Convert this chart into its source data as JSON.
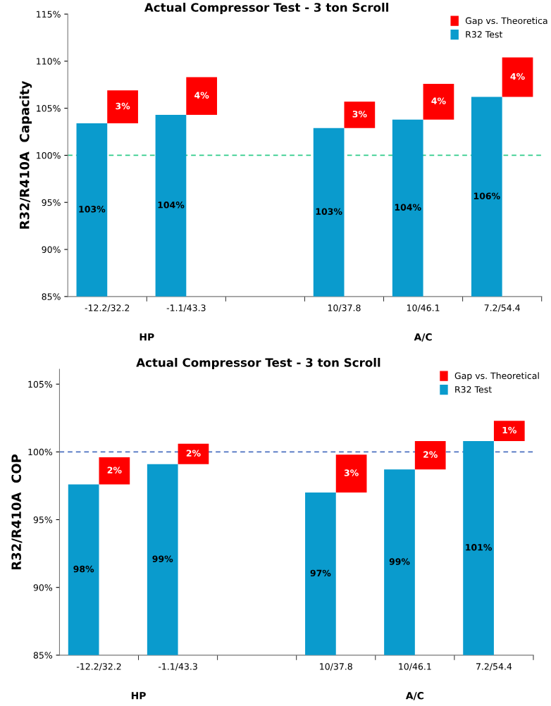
{
  "chart_data": [
    {
      "type": "bar",
      "title": "Actual Compressor Test - 3 ton Scroll",
      "ylabel": "R32/R410A  Capacity",
      "categories": [
        "-12.2/32.2",
        "-1.1/43.3",
        null,
        "10/37.8",
        "10/46.1",
        "7.2/54.4"
      ],
      "series": [
        {
          "name": "Gap vs. Theoretica",
          "color": "#ff0000",
          "base": [
            103.4,
            104.3,
            null,
            102.9,
            103.8,
            106.2
          ],
          "values": [
            3.5,
            4.0,
            null,
            2.8,
            3.8,
            4.2
          ],
          "value_labels": [
            "3%",
            "4%",
            null,
            "3%",
            "4%",
            "4%"
          ]
        },
        {
          "name": "R32 Test",
          "color": "#0a9bcd",
          "values": [
            103.4,
            104.3,
            null,
            102.9,
            103.8,
            106.2
          ],
          "value_labels": [
            "103%",
            "104%",
            null,
            "103%",
            "104%",
            "106%"
          ]
        }
      ],
      "ylim": [
        85,
        115
      ],
      "yticks": [
        {
          "value": 85,
          "label": "85%"
        },
        {
          "value": 90,
          "label": "90%"
        },
        {
          "value": 95,
          "label": "95%"
        },
        {
          "value": 100,
          "label": "100%"
        },
        {
          "value": 105,
          "label": "105%"
        },
        {
          "value": 110,
          "label": "110%"
        },
        {
          "value": 115,
          "label": "115%"
        }
      ],
      "ref_lines": [
        {
          "axis": "y",
          "value": 100,
          "color": "#2ecc8a",
          "line_style": "dashed"
        }
      ],
      "annotations": [
        "HP",
        "A/C"
      ],
      "legend": "top right",
      "grid": false
    },
    {
      "type": "bar",
      "title": "Actual Compressor Test - 3 ton Scroll",
      "ylabel": "R32/R410A  COP",
      "categories": [
        "-12.2/32.2",
        "-1.1/43.3",
        null,
        "10/37.8",
        "10/46.1",
        "7.2/54.4"
      ],
      "series": [
        {
          "name": "Gap vs. Theoretical",
          "color": "#ff0000",
          "base": [
            97.6,
            99.1,
            null,
            97.0,
            98.7,
            100.8
          ],
          "values": [
            2.0,
            1.5,
            null,
            2.8,
            2.1,
            1.5
          ],
          "value_labels": [
            "2%",
            "2%",
            null,
            "3%",
            "2%",
            "1%"
          ]
        },
        {
          "name": "R32 Test",
          "color": "#0a9bcd",
          "values": [
            97.6,
            99.1,
            null,
            97.0,
            98.7,
            100.8
          ],
          "value_labels": [
            "98%",
            "99%",
            null,
            "97%",
            "99%",
            "101%"
          ]
        }
      ],
      "ylim": [
        85,
        106.1
      ],
      "yticks": [
        {
          "value": 85,
          "label": "85%"
        },
        {
          "value": 90,
          "label": "90%"
        },
        {
          "value": 95,
          "label": "95%"
        },
        {
          "value": 100,
          "label": "100%"
        },
        {
          "value": 105,
          "label": "105%"
        }
      ],
      "ref_lines": [
        {
          "axis": "y",
          "value": 100,
          "color": "#4a6fc0",
          "line_style": "dashed"
        }
      ],
      "annotations": [
        "HP",
        "A/C"
      ],
      "legend": "top right",
      "grid": false
    }
  ]
}
